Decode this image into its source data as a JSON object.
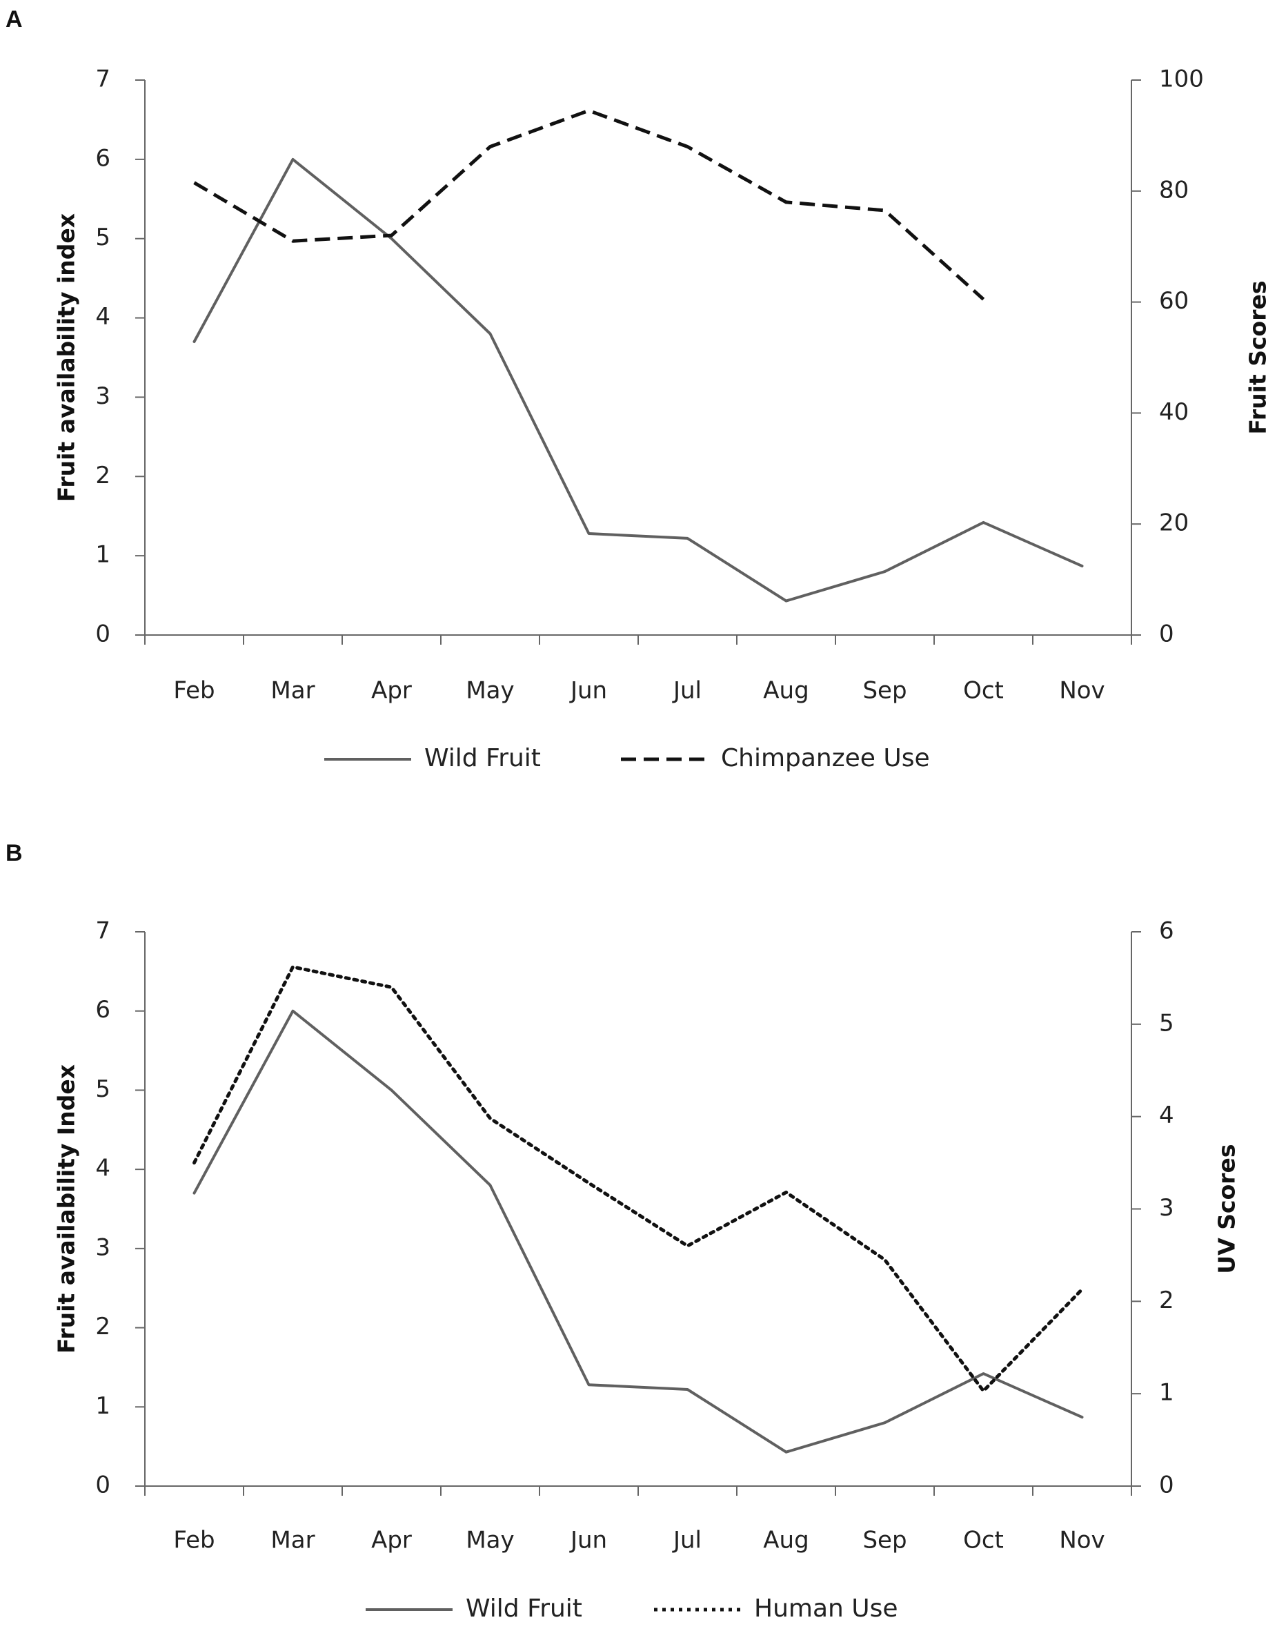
{
  "chart_data": [
    {
      "panel": "A",
      "type": "line",
      "categories": [
        "Feb",
        "Mar",
        "Apr",
        "May",
        "Jun",
        "Jul",
        "Aug",
        "Sep",
        "Oct",
        "Nov"
      ],
      "ylabel_left": "Fruit availability  index",
      "ylabel_right": "Fruit Scores",
      "ylim_left": [
        0,
        7
      ],
      "yticks_left": [
        "0",
        "1",
        "2",
        "3",
        "4",
        "5",
        "6",
        "7"
      ],
      "ylim_right": [
        0,
        100
      ],
      "yticks_right": [
        "0",
        "20",
        "40",
        "60",
        "80",
        "100"
      ],
      "series": [
        {
          "name": "Wild Fruit",
          "axis": "left",
          "style": "solid",
          "color": "#606060",
          "values": [
            3.7,
            6.0,
            5.0,
            3.8,
            1.28,
            1.22,
            0.43,
            0.8,
            1.42,
            0.87
          ]
        },
        {
          "name": "Chimpanzee Use",
          "axis": "right",
          "style": "dashed",
          "color": "#111111",
          "values": [
            81.5,
            71,
            72,
            88,
            94.5,
            88,
            78,
            76.5,
            60.5,
            null
          ]
        }
      ],
      "legend": [
        "Wild Fruit",
        "Chimpanzee Use"
      ]
    },
    {
      "panel": "B",
      "type": "line",
      "categories": [
        "Feb",
        "Mar",
        "Apr",
        "May",
        "Jun",
        "Jul",
        "Aug",
        "Sep",
        "Oct",
        "Nov"
      ],
      "ylabel_left": "Fruit availability  Index",
      "ylabel_right": "UV Scores",
      "ylim_left": [
        0,
        7
      ],
      "yticks_left": [
        "0",
        "1",
        "2",
        "3",
        "4",
        "5",
        "6",
        "7"
      ],
      "ylim_right": [
        0,
        6
      ],
      "yticks_right": [
        "0",
        "1",
        "2",
        "3",
        "4",
        "5",
        "6"
      ],
      "series": [
        {
          "name": "Wild Fruit",
          "axis": "left",
          "style": "solid",
          "color": "#606060",
          "values": [
            3.7,
            6.0,
            5.0,
            3.8,
            1.28,
            1.22,
            0.43,
            0.8,
            1.42,
            0.87
          ]
        },
        {
          "name": "Human Use",
          "axis": "right",
          "style": "dotted",
          "color": "#111111",
          "values": [
            3.5,
            5.62,
            5.4,
            3.98,
            3.28,
            2.6,
            3.18,
            2.45,
            1.03,
            2.13
          ]
        }
      ],
      "legend": [
        "Wild Fruit",
        "Human Use"
      ]
    }
  ]
}
